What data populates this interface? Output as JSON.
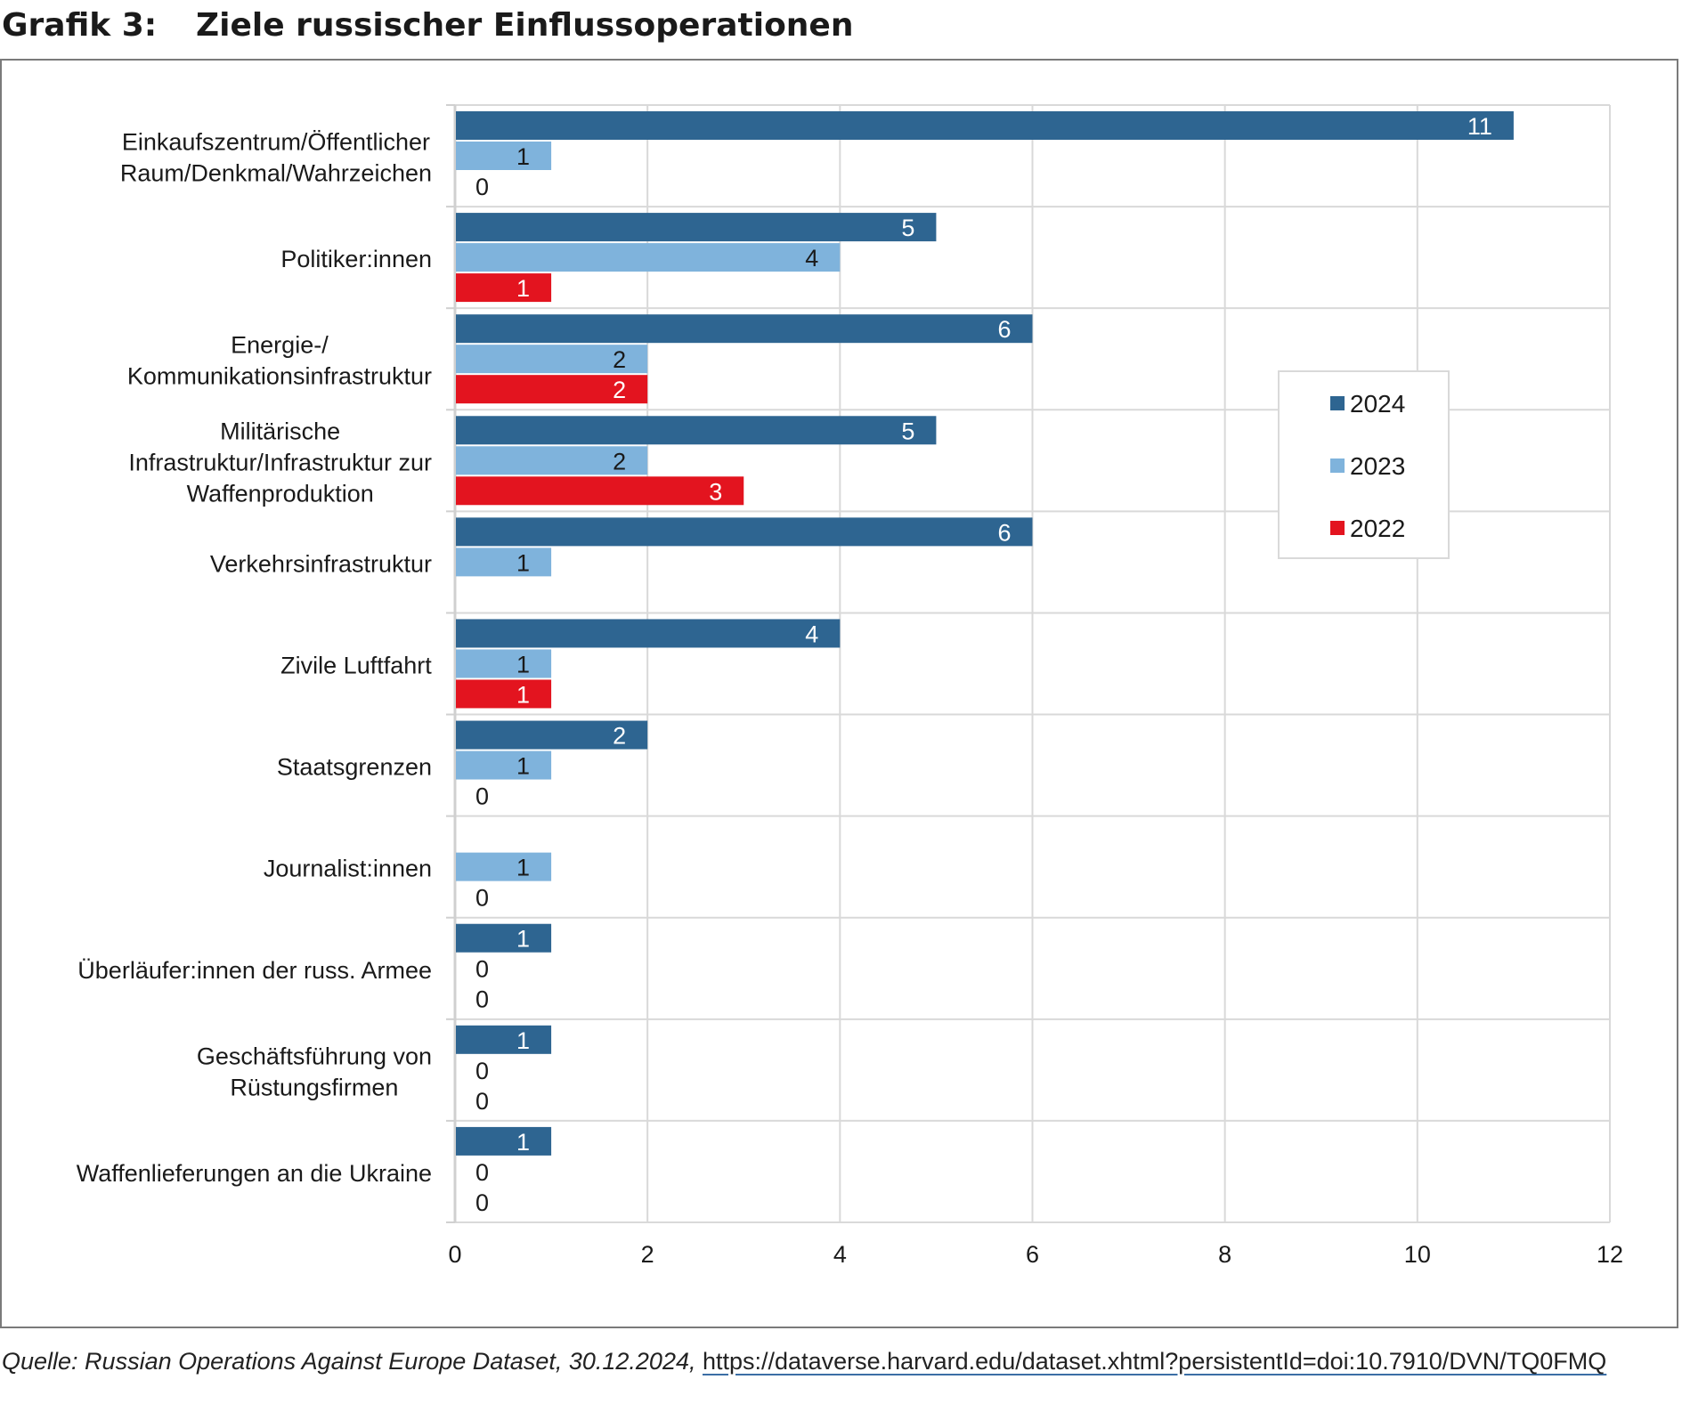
{
  "figure": {
    "number": "Grafik 3:",
    "title": "Ziele russischer Einflussoperationen"
  },
  "source": {
    "citation": "Quelle: Russian Operations Against Europe Dataset, 30.12.2024,",
    "url": "https://dataverse.harvard.edu/dataset.xhtml?persistentId=doi:10.7910/DVN/TQ0FMQ"
  },
  "chart_data": {
    "type": "bar",
    "orientation": "horizontal",
    "title": "Ziele russischer Einflussoperationen",
    "xlabel": "",
    "ylabel": "",
    "xlim": [
      0,
      12
    ],
    "x_ticks": [
      0,
      2,
      4,
      6,
      8,
      10,
      12
    ],
    "grid": true,
    "legend_position": "right",
    "categories": [
      [
        "Einkaufszentrum/Öffentlicher",
        "Raum/Denkmal/Wahrzeichen"
      ],
      [
        "Politiker:innen"
      ],
      [
        "Energie-/",
        "Kommunikationsinfrastruktur"
      ],
      [
        "Militärische",
        "Infrastruktur/Infrastruktur zur",
        "Waffenproduktion"
      ],
      [
        "Verkehrsinfrastruktur"
      ],
      [
        "Zivile Luftfahrt"
      ],
      [
        "Staatsgrenzen"
      ],
      [
        "Journalist:innen"
      ],
      [
        "Überläufer:innen der russ. Armee"
      ],
      [
        "Geschäftsführung von",
        "Rüstungsfirmen"
      ],
      [
        "Waffenlieferungen an die Ukraine"
      ]
    ],
    "series": [
      {
        "name": "2024",
        "color": "#2e6591",
        "label_color": "#ffffff",
        "values": [
          11,
          5,
          6,
          5,
          6,
          4,
          2,
          null,
          1,
          1,
          1
        ]
      },
      {
        "name": "2023",
        "color": "#7fb3dc",
        "label_color": "#1a1a1a",
        "values": [
          1,
          4,
          2,
          2,
          1,
          1,
          1,
          1,
          0,
          0,
          0
        ]
      },
      {
        "name": "2022",
        "color": "#e3141f",
        "label_color": "#ffffff",
        "values": [
          0,
          1,
          2,
          3,
          null,
          1,
          0,
          0,
          0,
          0,
          0
        ]
      }
    ],
    "colors": {
      "gridline": "#d9d9d9",
      "axis": "#d0d0d0",
      "legend_border": "#d9d9d9"
    }
  }
}
